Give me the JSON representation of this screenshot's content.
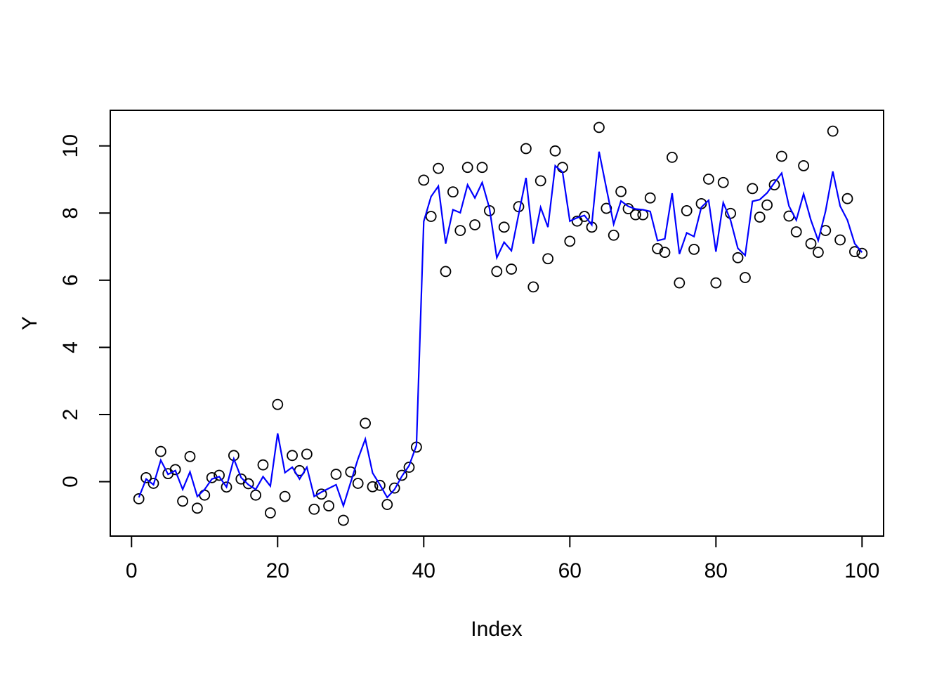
{
  "figure": {
    "background": "#ffffff",
    "text_color": "#000000"
  },
  "chart_data": {
    "type": "scatter",
    "title": "",
    "xlabel": "Index",
    "ylabel": "Y",
    "x_is_index": true,
    "x_start": 1,
    "n_points": 100,
    "xlim": [
      -2.91,
      102.95
    ],
    "ylim": [
      -1.62,
      11.06
    ],
    "x_ticks": [
      0,
      20,
      40,
      60,
      80,
      100
    ],
    "y_ticks": [
      0,
      2,
      4,
      6,
      8,
      10
    ],
    "grid": false,
    "legend": null,
    "box": true,
    "series": [
      {
        "name": "observations",
        "type": "points",
        "marker": "open-circle",
        "color": "#000000",
        "values": [
          -0.51,
          0.12,
          -0.05,
          0.9,
          0.24,
          0.36,
          -0.58,
          0.75,
          -0.79,
          -0.4,
          0.12,
          0.19,
          -0.16,
          0.78,
          0.08,
          -0.06,
          -0.4,
          0.5,
          -0.93,
          2.3,
          -0.44,
          0.78,
          0.33,
          0.82,
          -0.82,
          -0.37,
          -0.72,
          0.22,
          -1.15,
          0.29,
          -0.05,
          1.74,
          -0.15,
          -0.11,
          -0.68,
          -0.19,
          0.19,
          0.43,
          1.03,
          8.98,
          7.9,
          9.33,
          6.26,
          8.63,
          7.48,
          9.36,
          7.65,
          9.36,
          8.07,
          6.26,
          7.58,
          6.33,
          8.19,
          9.92,
          5.8,
          8.96,
          6.64,
          9.85,
          9.36,
          7.16,
          7.76,
          7.9,
          7.58,
          10.55,
          8.14,
          7.34,
          8.64,
          8.13,
          7.95,
          7.95,
          8.45,
          6.94,
          6.83,
          9.66,
          5.92,
          8.07,
          6.92,
          8.28,
          9.01,
          5.92,
          8.91,
          7.99,
          6.67,
          6.08,
          8.73,
          7.88,
          8.24,
          8.84,
          9.69,
          7.91,
          7.44,
          9.41,
          7.09,
          6.83,
          7.48,
          10.44,
          7.2,
          8.43,
          6.85,
          6.8
        ]
      },
      {
        "name": "fitted-line",
        "type": "line",
        "color": "#0000FF",
        "values": [
          -0.47,
          0.08,
          -0.09,
          0.64,
          0.22,
          0.33,
          -0.23,
          0.29,
          -0.44,
          -0.23,
          0.08,
          0.15,
          -0.16,
          0.68,
          0.12,
          -0.09,
          -0.23,
          0.15,
          -0.13,
          1.44,
          0.27,
          0.43,
          0.08,
          0.43,
          -0.44,
          -0.31,
          -0.2,
          -0.09,
          -0.72,
          -0.02,
          0.68,
          1.27,
          0.26,
          -0.09,
          -0.47,
          -0.23,
          0.16,
          0.48,
          1.08,
          7.75,
          8.49,
          8.8,
          7.09,
          8.1,
          8.01,
          8.84,
          8.45,
          8.91,
          8.14,
          6.67,
          7.13,
          6.88,
          7.97,
          9.05,
          7.09,
          8.17,
          7.58,
          9.41,
          9.22,
          7.76,
          7.86,
          7.93,
          7.65,
          9.83,
          8.74,
          7.67,
          8.36,
          8.2,
          8.12,
          8.1,
          8.05,
          7.18,
          7.23,
          8.59,
          6.78,
          7.41,
          7.3,
          8.17,
          8.38,
          6.85,
          8.31,
          7.79,
          6.95,
          6.74,
          8.35,
          8.4,
          8.6,
          8.9,
          9.19,
          8.21,
          7.79,
          8.57,
          7.79,
          7.18,
          8.05,
          9.24,
          8.21,
          7.79,
          7.09,
          6.83
        ]
      }
    ]
  }
}
